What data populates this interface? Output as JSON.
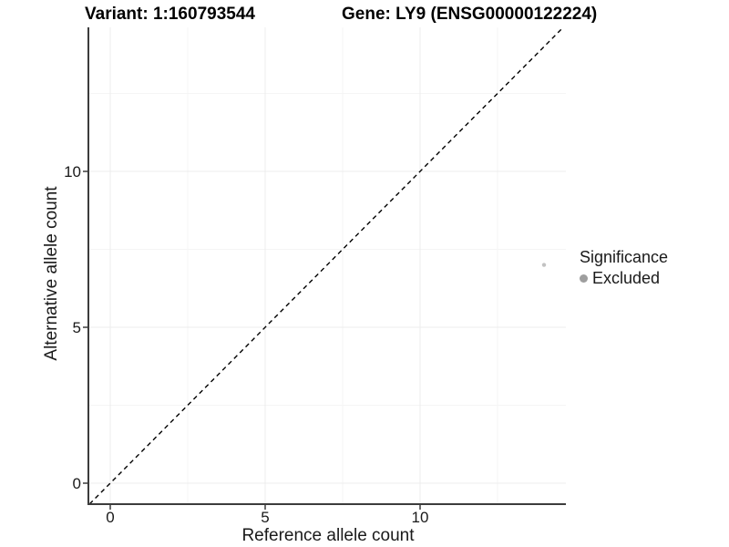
{
  "header": {
    "variant_title": "Variant: 1:160793544",
    "gene_title": "Gene: LY9 (ENSG00000122224)"
  },
  "axes": {
    "x_label": "Reference allele count",
    "y_label": "Alternative allele count"
  },
  "legend": {
    "title": "Significance",
    "items": [
      {
        "label": "Excluded",
        "color": "#9e9e9e"
      }
    ]
  },
  "colors": {
    "background": "#ffffff",
    "axis_line": "#3c3c3c",
    "major_grid": "#ececec",
    "minor_grid": "#f5f5f5",
    "reference_line": "#000000",
    "point": "#c3c3c3",
    "tick_text": "#1a1a1a"
  },
  "chart_data": {
    "type": "scatter",
    "title_left": "Variant: 1:160793544",
    "title_right": "Gene: LY9 (ENSG00000122224)",
    "xlabel": "Reference allele count",
    "ylabel": "Alternative allele count",
    "xlim": [
      -0.71,
      14.71
    ],
    "ylim": [
      -0.67,
      14.62
    ],
    "x_ticks": [
      0,
      5,
      10
    ],
    "y_ticks": [
      0,
      5,
      10
    ],
    "x_minor_ticks": [
      2.5,
      7.5,
      12.5
    ],
    "y_minor_ticks": [
      2.5,
      7.5,
      12.5
    ],
    "grid": true,
    "legend_position": "right",
    "series": [
      {
        "name": "Excluded",
        "color": "#c3c3c3",
        "marker_radius": 2.2,
        "points": [
          {
            "x": 14,
            "y": 7
          }
        ]
      }
    ],
    "reference_line": {
      "type": "identity",
      "slope": 1,
      "intercept": 0,
      "style": "dashed",
      "color": "#000000"
    }
  }
}
